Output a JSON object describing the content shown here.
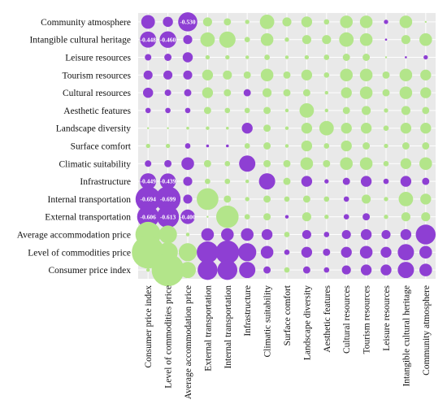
{
  "colors": {
    "positive": "#B3E58A",
    "negative": "#8E3FD3",
    "panel_background": "#E9E9E9",
    "grid": "#FFFFFF"
  },
  "chart_data": {
    "type": "bubble-correlation-matrix",
    "grid": true,
    "rows": [
      "Community atmosphere",
      "Intangible cultural heritage",
      "Leisure resources",
      "Tourism resources",
      "Cultural resources",
      "Aesthetic features",
      "Landscape diversity",
      "Surface comfort",
      "Climatic suitability",
      "Infrastructure",
      "Internal transportation",
      "External transportation",
      "Average accommodation price",
      "Level of commodities price",
      "Consumer price index"
    ],
    "columns": [
      "Consumer price index",
      "Level of commodities price",
      "Average accommodation price",
      "External transportation",
      "Internal transportation",
      "Infrastructure",
      "Climatic suitability",
      "Surface comfort",
      "Landscape diversity",
      "Aesthetic features",
      "Cultural resources",
      "Tourism resources",
      "Leisure resources",
      "Intangible cultural heritage",
      "Community atmosphere"
    ],
    "values": [
      [
        -0.38,
        -0.28,
        -0.53,
        0.25,
        0.2,
        0.12,
        0.4,
        0.25,
        0.3,
        0.15,
        0.35,
        0.35,
        -0.12,
        0.35,
        0.05
      ],
      [
        -0.448,
        -0.46,
        -0.25,
        0.4,
        0.45,
        0.15,
        0.35,
        0.12,
        0.25,
        0.25,
        0.4,
        0.35,
        -0.06,
        0.25,
        0.35
      ],
      [
        -0.18,
        -0.2,
        -0.28,
        0.12,
        0.12,
        0.1,
        0.15,
        0.1,
        0.12,
        0.15,
        0.2,
        0.2,
        0.04,
        -0.06,
        -0.12
      ],
      [
        -0.25,
        -0.25,
        -0.25,
        0.3,
        0.25,
        0.2,
        0.35,
        0.2,
        0.3,
        0.15,
        0.35,
        0.35,
        0.2,
        0.35,
        0.3
      ],
      [
        -0.28,
        -0.18,
        -0.2,
        0.3,
        0.2,
        -0.2,
        0.25,
        0.2,
        0.2,
        0.1,
        0.3,
        0.35,
        0.2,
        0.35,
        0.3
      ],
      [
        -0.15,
        -0.15,
        -0.15,
        0.2,
        0.15,
        0.15,
        0.2,
        0.1,
        0.4,
        0.1,
        0.2,
        0.25,
        0.12,
        0.25,
        0.2
      ],
      [
        0.05,
        0.05,
        0.08,
        0.1,
        0.08,
        -0.3,
        0.2,
        0.1,
        0.3,
        0.4,
        0.3,
        0.3,
        0.15,
        0.3,
        0.3
      ],
      [
        0.12,
        0.12,
        -0.15,
        -0.08,
        -0.08,
        0.15,
        0.2,
        0.1,
        0.3,
        0.15,
        0.3,
        0.2,
        0.12,
        0.2,
        0.2
      ],
      [
        -0.18,
        -0.2,
        -0.35,
        0.2,
        0.15,
        -0.45,
        0.2,
        0.2,
        0.35,
        0.2,
        0.35,
        0.35,
        0.15,
        0.3,
        0.35
      ],
      [
        -0.449,
        -0.439,
        -0.25,
        0.15,
        0.15,
        0.1,
        -0.45,
        0.2,
        -0.3,
        -0.12,
        -0.2,
        -0.3,
        -0.15,
        -0.3,
        -0.2
      ],
      [
        -0.694,
        -0.699,
        -0.25,
        0.6,
        0.2,
        0.12,
        0.2,
        0.15,
        0.2,
        0.15,
        -0.15,
        0.25,
        0.12,
        0.4,
        0.3
      ],
      [
        -0.606,
        -0.613,
        -0.4,
        0.05,
        0.62,
        0.15,
        0.2,
        -0.1,
        0.25,
        0.12,
        -0.15,
        -0.2,
        0.12,
        0.25,
        0.25
      ],
      [
        0.7,
        0.5,
        0.1,
        -0.35,
        -0.35,
        -0.35,
        -0.3,
        0.15,
        -0.25,
        -0.15,
        -0.25,
        -0.3,
        -0.25,
        -0.3,
        -0.55
      ],
      [
        0.9,
        0.55,
        0.5,
        -0.6,
        -0.65,
        -0.5,
        -0.35,
        -0.15,
        -0.3,
        -0.2,
        -0.3,
        -0.35,
        -0.3,
        -0.45,
        -0.35
      ],
      [
        0.1,
        0.9,
        0.45,
        -0.55,
        -0.55,
        -0.45,
        -0.2,
        0.15,
        -0.2,
        -0.15,
        -0.25,
        -0.3,
        -0.3,
        -0.45,
        -0.35
      ]
    ],
    "value_labels": [
      {
        "row": 0,
        "col": 2,
        "text": "-0.530"
      },
      {
        "row": 1,
        "col": 0,
        "text": "-0.448"
      },
      {
        "row": 1,
        "col": 1,
        "text": "-0.460"
      },
      {
        "row": 9,
        "col": 0,
        "text": "-0.449"
      },
      {
        "row": 9,
        "col": 1,
        "text": "-0.439"
      },
      {
        "row": 10,
        "col": 0,
        "text": "-0.694"
      },
      {
        "row": 10,
        "col": 1,
        "text": "-0.699"
      },
      {
        "row": 11,
        "col": 0,
        "text": "-0.606"
      },
      {
        "row": 11,
        "col": 1,
        "text": "-0.613"
      },
      {
        "row": 11,
        "col": 2,
        "text": "-0.400"
      }
    ]
  }
}
